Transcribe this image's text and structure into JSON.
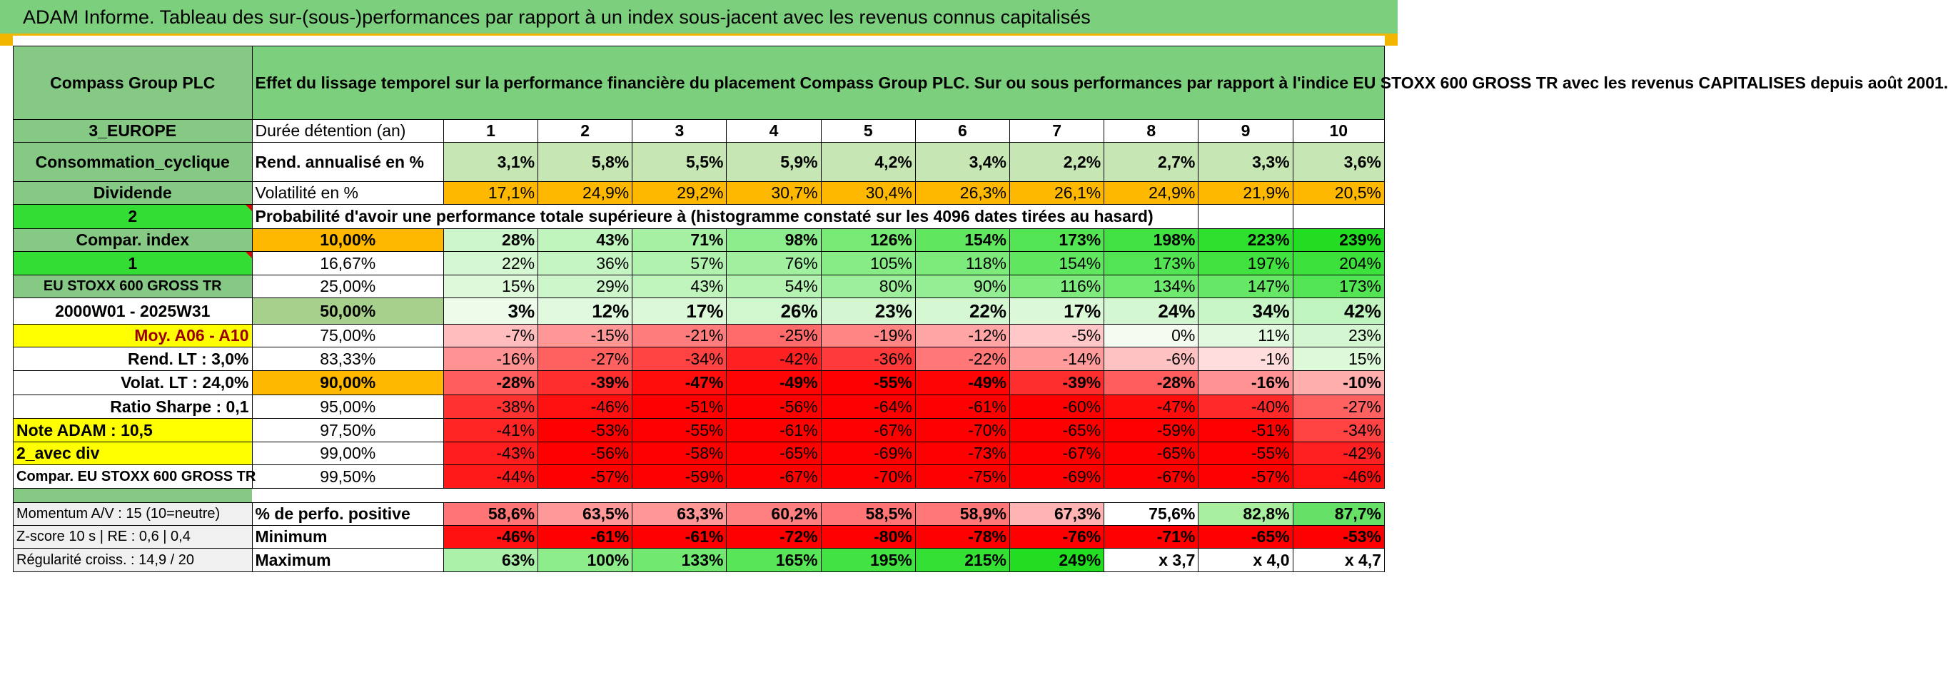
{
  "title": "ADAM Informe. Tableau des sur-(sous-)performances par rapport à un index sous-jacent avec les revenus connus capitalisés",
  "header": {
    "company": "Compass Group PLC",
    "description": "Effet du lissage temporel sur la performance financière du placement Compass Group PLC. Sur ou sous performances par rapport à l'indice EU STOXX 600 GROSS TR avec les revenus CAPITALISES depuis août 2001."
  },
  "left_labels": [
    "3_EUROPE",
    "Consommation_cyclique",
    "Dividende",
    "2",
    "Compar. index",
    "1",
    "EU STOXX 600 GROSS TR",
    "2000W01 - 2025W31",
    "Moy. A06 - A10",
    "Rend. LT :    3,0%",
    "Volat. LT :    24,0%",
    "Ratio Sharpe :    0,1",
    "Note ADAM : 10,5",
    "2_avec div",
    "Compar. EU STOXX 600 GROSS TR"
  ],
  "summary": {
    "duration_label": "Durée détention (an)",
    "years": [
      "1",
      "2",
      "3",
      "4",
      "5",
      "6",
      "7",
      "8",
      "9",
      "10"
    ],
    "rend_label": "Rend. annualisé en %",
    "rend": [
      "3,1%",
      "5,8%",
      "5,5%",
      "5,9%",
      "4,2%",
      "3,4%",
      "2,2%",
      "2,7%",
      "3,3%",
      "3,6%"
    ],
    "vol_label": "Volatilité en %",
    "vol": [
      "17,1%",
      "24,9%",
      "29,2%",
      "30,7%",
      "30,4%",
      "26,3%",
      "26,1%",
      "24,9%",
      "21,9%",
      "20,5%"
    ],
    "prob_label": "Probabilité d'avoir une performance totale supérieure à (histogramme constaté sur les 4096 dates tirées au hasard)"
  },
  "percentiles": [
    "10,00%",
    "16,67%",
    "25,00%",
    "50,00%",
    "75,00%",
    "83,33%",
    "90,00%",
    "95,00%",
    "97,50%",
    "99,00%",
    "99,50%"
  ],
  "matrix": [
    [
      "28%",
      "43%",
      "71%",
      "98%",
      "126%",
      "154%",
      "173%",
      "198%",
      "223%",
      "239%"
    ],
    [
      "22%",
      "36%",
      "57%",
      "76%",
      "105%",
      "118%",
      "154%",
      "173%",
      "197%",
      "204%"
    ],
    [
      "15%",
      "29%",
      "43%",
      "54%",
      "80%",
      "90%",
      "116%",
      "134%",
      "147%",
      "173%"
    ],
    [
      "3%",
      "12%",
      "17%",
      "26%",
      "23%",
      "22%",
      "17%",
      "24%",
      "34%",
      "42%"
    ],
    [
      "-7%",
      "-15%",
      "-21%",
      "-25%",
      "-19%",
      "-12%",
      "-5%",
      "0%",
      "11%",
      "23%"
    ],
    [
      "-16%",
      "-27%",
      "-34%",
      "-42%",
      "-36%",
      "-22%",
      "-14%",
      "-6%",
      "-1%",
      "15%"
    ],
    [
      "-28%",
      "-39%",
      "-47%",
      "-49%",
      "-55%",
      "-49%",
      "-39%",
      "-28%",
      "-16%",
      "-10%"
    ],
    [
      "-38%",
      "-46%",
      "-51%",
      "-56%",
      "-64%",
      "-61%",
      "-60%",
      "-47%",
      "-40%",
      "-27%"
    ],
    [
      "-41%",
      "-53%",
      "-55%",
      "-61%",
      "-67%",
      "-70%",
      "-65%",
      "-59%",
      "-51%",
      "-34%"
    ],
    [
      "-43%",
      "-56%",
      "-58%",
      "-65%",
      "-69%",
      "-73%",
      "-67%",
      "-65%",
      "-55%",
      "-42%"
    ],
    [
      "-44%",
      "-57%",
      "-59%",
      "-67%",
      "-70%",
      "-75%",
      "-69%",
      "-67%",
      "-57%",
      "-46%"
    ]
  ],
  "bottom": {
    "labels": [
      "Momentum A/V : 15 (10=neutre)",
      "Z-score 10 s | RE : 0,6 | 0,4",
      "Régularité croiss. : 14,9 / 20"
    ],
    "metrics": [
      "% de perfo. positive",
      "Minimum",
      "Maximum"
    ],
    "rows": [
      [
        "58,6%",
        "63,5%",
        "63,3%",
        "60,2%",
        "58,5%",
        "58,9%",
        "67,3%",
        "75,6%",
        "82,8%",
        "87,7%"
      ],
      [
        "-46%",
        "-61%",
        "-61%",
        "-72%",
        "-80%",
        "-78%",
        "-76%",
        "-71%",
        "-65%",
        "-53%"
      ],
      [
        "63%",
        "100%",
        "133%",
        "165%",
        "195%",
        "215%",
        "249%",
        "x 3,7",
        "x 4,0",
        "x 4,7"
      ]
    ]
  },
  "colors": {
    "banner": "#7ccf7c",
    "accent": "#f2b500",
    "positive": "#33dd33",
    "negative": "#ff0000",
    "highlight": "#ffff00",
    "orange": "#ffb800"
  }
}
